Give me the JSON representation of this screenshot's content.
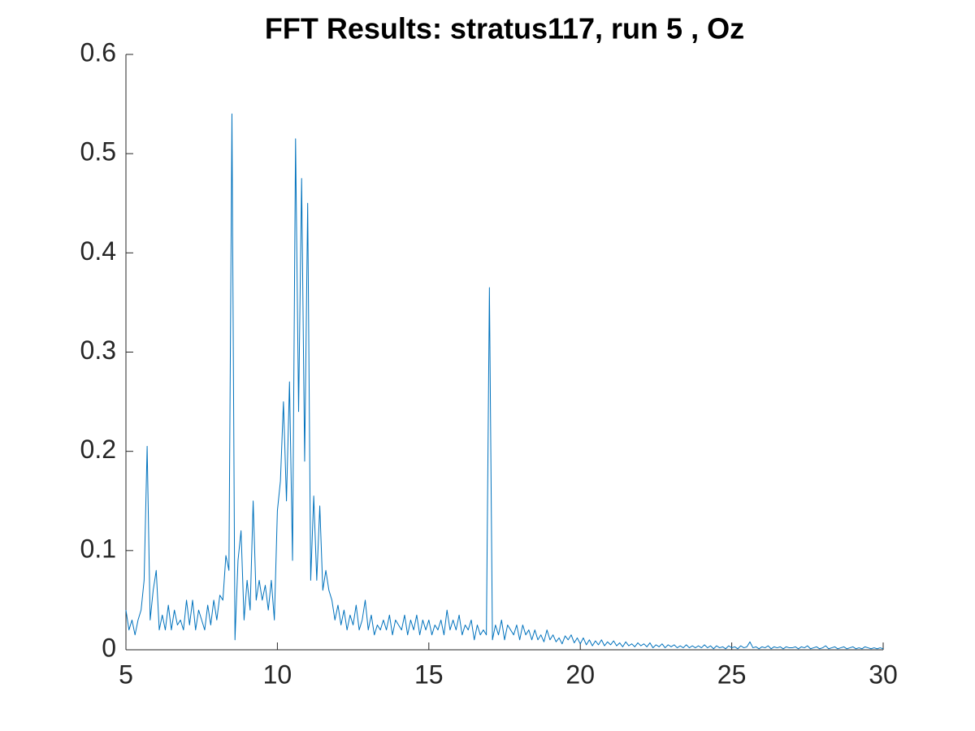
{
  "chart_data": {
    "type": "line",
    "title": "FFT Results: stratus117, run 5 , Oz",
    "color": "#0072bd",
    "x": [
      5.0,
      5.1,
      5.2,
      5.3,
      5.4,
      5.5,
      5.6,
      5.7,
      5.8,
      5.9,
      6.0,
      6.1,
      6.2,
      6.3,
      6.4,
      6.5,
      6.6,
      6.7,
      6.8,
      6.9,
      7.0,
      7.1,
      7.2,
      7.3,
      7.4,
      7.5,
      7.6,
      7.7,
      7.8,
      7.9,
      8.0,
      8.1,
      8.2,
      8.3,
      8.4,
      8.5,
      8.6,
      8.7,
      8.8,
      8.9,
      9.0,
      9.1,
      9.2,
      9.3,
      9.4,
      9.5,
      9.6,
      9.7,
      9.8,
      9.9,
      10.0,
      10.1,
      10.2,
      10.3,
      10.4,
      10.5,
      10.6,
      10.7,
      10.8,
      10.9,
      11.0,
      11.1,
      11.2,
      11.3,
      11.4,
      11.5,
      11.6,
      11.7,
      11.8,
      11.9,
      12.0,
      12.1,
      12.2,
      12.3,
      12.4,
      12.5,
      12.6,
      12.7,
      12.8,
      12.9,
      13.0,
      13.1,
      13.2,
      13.3,
      13.4,
      13.5,
      13.6,
      13.7,
      13.8,
      13.9,
      14.0,
      14.1,
      14.2,
      14.3,
      14.4,
      14.5,
      14.6,
      14.7,
      14.8,
      14.9,
      15.0,
      15.1,
      15.2,
      15.3,
      15.4,
      15.5,
      15.6,
      15.7,
      15.8,
      15.9,
      16.0,
      16.1,
      16.2,
      16.3,
      16.4,
      16.5,
      16.6,
      16.7,
      16.8,
      16.9,
      17.0,
      17.1,
      17.2,
      17.3,
      17.4,
      17.5,
      17.6,
      17.7,
      17.8,
      17.9,
      18.0,
      18.1,
      18.2,
      18.3,
      18.4,
      18.5,
      18.6,
      18.7,
      18.8,
      18.9,
      19.0,
      19.1,
      19.2,
      19.3,
      19.4,
      19.5,
      19.6,
      19.7,
      19.8,
      19.9,
      20.0,
      20.1,
      20.2,
      20.3,
      20.4,
      20.5,
      20.6,
      20.7,
      20.8,
      20.9,
      21.0,
      21.1,
      21.2,
      21.3,
      21.4,
      21.5,
      21.6,
      21.7,
      21.8,
      21.9,
      22.0,
      22.1,
      22.2,
      22.3,
      22.4,
      22.5,
      22.6,
      22.7,
      22.8,
      22.9,
      23.0,
      23.1,
      23.2,
      23.3,
      23.4,
      23.5,
      23.6,
      23.7,
      23.8,
      23.9,
      24.0,
      24.1,
      24.2,
      24.3,
      24.4,
      24.5,
      24.6,
      24.7,
      24.8,
      24.9,
      25.0,
      25.1,
      25.2,
      25.3,
      25.4,
      25.5,
      25.6,
      25.7,
      25.8,
      25.9,
      26.0,
      26.1,
      26.2,
      26.3,
      26.4,
      26.5,
      26.6,
      26.7,
      26.8,
      26.9,
      27.0,
      27.1,
      27.2,
      27.3,
      27.4,
      27.5,
      27.6,
      27.7,
      27.8,
      27.9,
      28.0,
      28.1,
      28.2,
      28.3,
      28.4,
      28.5,
      28.6,
      28.7,
      28.8,
      28.9,
      29.0,
      29.1,
      29.2,
      29.3,
      29.4,
      29.5,
      29.6,
      29.7,
      29.8,
      29.9,
      30.0
    ],
    "values": [
      0.04,
      0.02,
      0.03,
      0.015,
      0.03,
      0.04,
      0.07,
      0.205,
      0.03,
      0.06,
      0.08,
      0.02,
      0.035,
      0.02,
      0.045,
      0.02,
      0.04,
      0.025,
      0.03,
      0.02,
      0.05,
      0.025,
      0.05,
      0.02,
      0.04,
      0.03,
      0.02,
      0.045,
      0.025,
      0.05,
      0.03,
      0.055,
      0.05,
      0.095,
      0.08,
      0.54,
      0.01,
      0.09,
      0.12,
      0.03,
      0.07,
      0.04,
      0.15,
      0.05,
      0.07,
      0.05,
      0.065,
      0.04,
      0.07,
      0.03,
      0.14,
      0.17,
      0.25,
      0.15,
      0.27,
      0.09,
      0.515,
      0.24,
      0.475,
      0.19,
      0.45,
      0.07,
      0.155,
      0.07,
      0.145,
      0.06,
      0.08,
      0.06,
      0.05,
      0.03,
      0.045,
      0.025,
      0.04,
      0.02,
      0.035,
      0.025,
      0.045,
      0.02,
      0.03,
      0.05,
      0.02,
      0.035,
      0.015,
      0.025,
      0.02,
      0.03,
      0.02,
      0.035,
      0.015,
      0.03,
      0.025,
      0.02,
      0.035,
      0.015,
      0.03,
      0.02,
      0.035,
      0.015,
      0.03,
      0.02,
      0.03,
      0.015,
      0.025,
      0.02,
      0.03,
      0.015,
      0.04,
      0.02,
      0.03,
      0.02,
      0.035,
      0.015,
      0.025,
      0.02,
      0.03,
      0.01,
      0.025,
      0.015,
      0.02,
      0.015,
      0.365,
      0.01,
      0.025,
      0.015,
      0.03,
      0.01,
      0.025,
      0.02,
      0.015,
      0.025,
      0.01,
      0.025,
      0.015,
      0.02,
      0.01,
      0.02,
      0.01,
      0.015,
      0.008,
      0.02,
      0.01,
      0.015,
      0.008,
      0.012,
      0.006,
      0.014,
      0.01,
      0.015,
      0.007,
      0.012,
      0.006,
      0.012,
      0.005,
      0.01,
      0.004,
      0.009,
      0.005,
      0.01,
      0.004,
      0.008,
      0.005,
      0.009,
      0.004,
      0.007,
      0.003,
      0.008,
      0.004,
      0.006,
      0.003,
      0.007,
      0.004,
      0.006,
      0.003,
      0.007,
      0.002,
      0.005,
      0.003,
      0.006,
      0.002,
      0.005,
      0.003,
      0.005,
      0.002,
      0.004,
      0.002,
      0.005,
      0.002,
      0.004,
      0.002,
      0.004,
      0.002,
      0.005,
      0.002,
      0.004,
      0.001,
      0.004,
      0.002,
      0.003,
      0.001,
      0.004,
      0.002,
      0.003,
      0.001,
      0.004,
      0.002,
      0.003,
      0.008,
      0.002,
      0.003,
      0.001,
      0.003,
      0.002,
      0.004,
      0.001,
      0.003,
      0.002,
      0.003,
      0.001,
      0.003,
      0.002,
      0.002,
      0.003,
      0.001,
      0.003,
      0.002,
      0.004,
      0.001,
      0.002,
      0.003,
      0.001,
      0.002,
      0.004,
      0.001,
      0.002,
      0.003,
      0.001,
      0.002,
      0.003,
      0.001,
      0.002,
      0.003,
      0.001,
      0.002,
      0.001,
      0.003,
      0.002,
      0.001,
      0.002,
      0.001,
      0.002,
      0.001
    ],
    "xlim": [
      5,
      30
    ],
    "xticks": [
      5,
      10,
      15,
      20,
      25,
      30
    ],
    "ylim": [
      0,
      0.6
    ],
    "yticks": [
      0,
      0.1,
      0.2,
      0.3,
      0.4,
      0.5,
      0.6
    ]
  }
}
